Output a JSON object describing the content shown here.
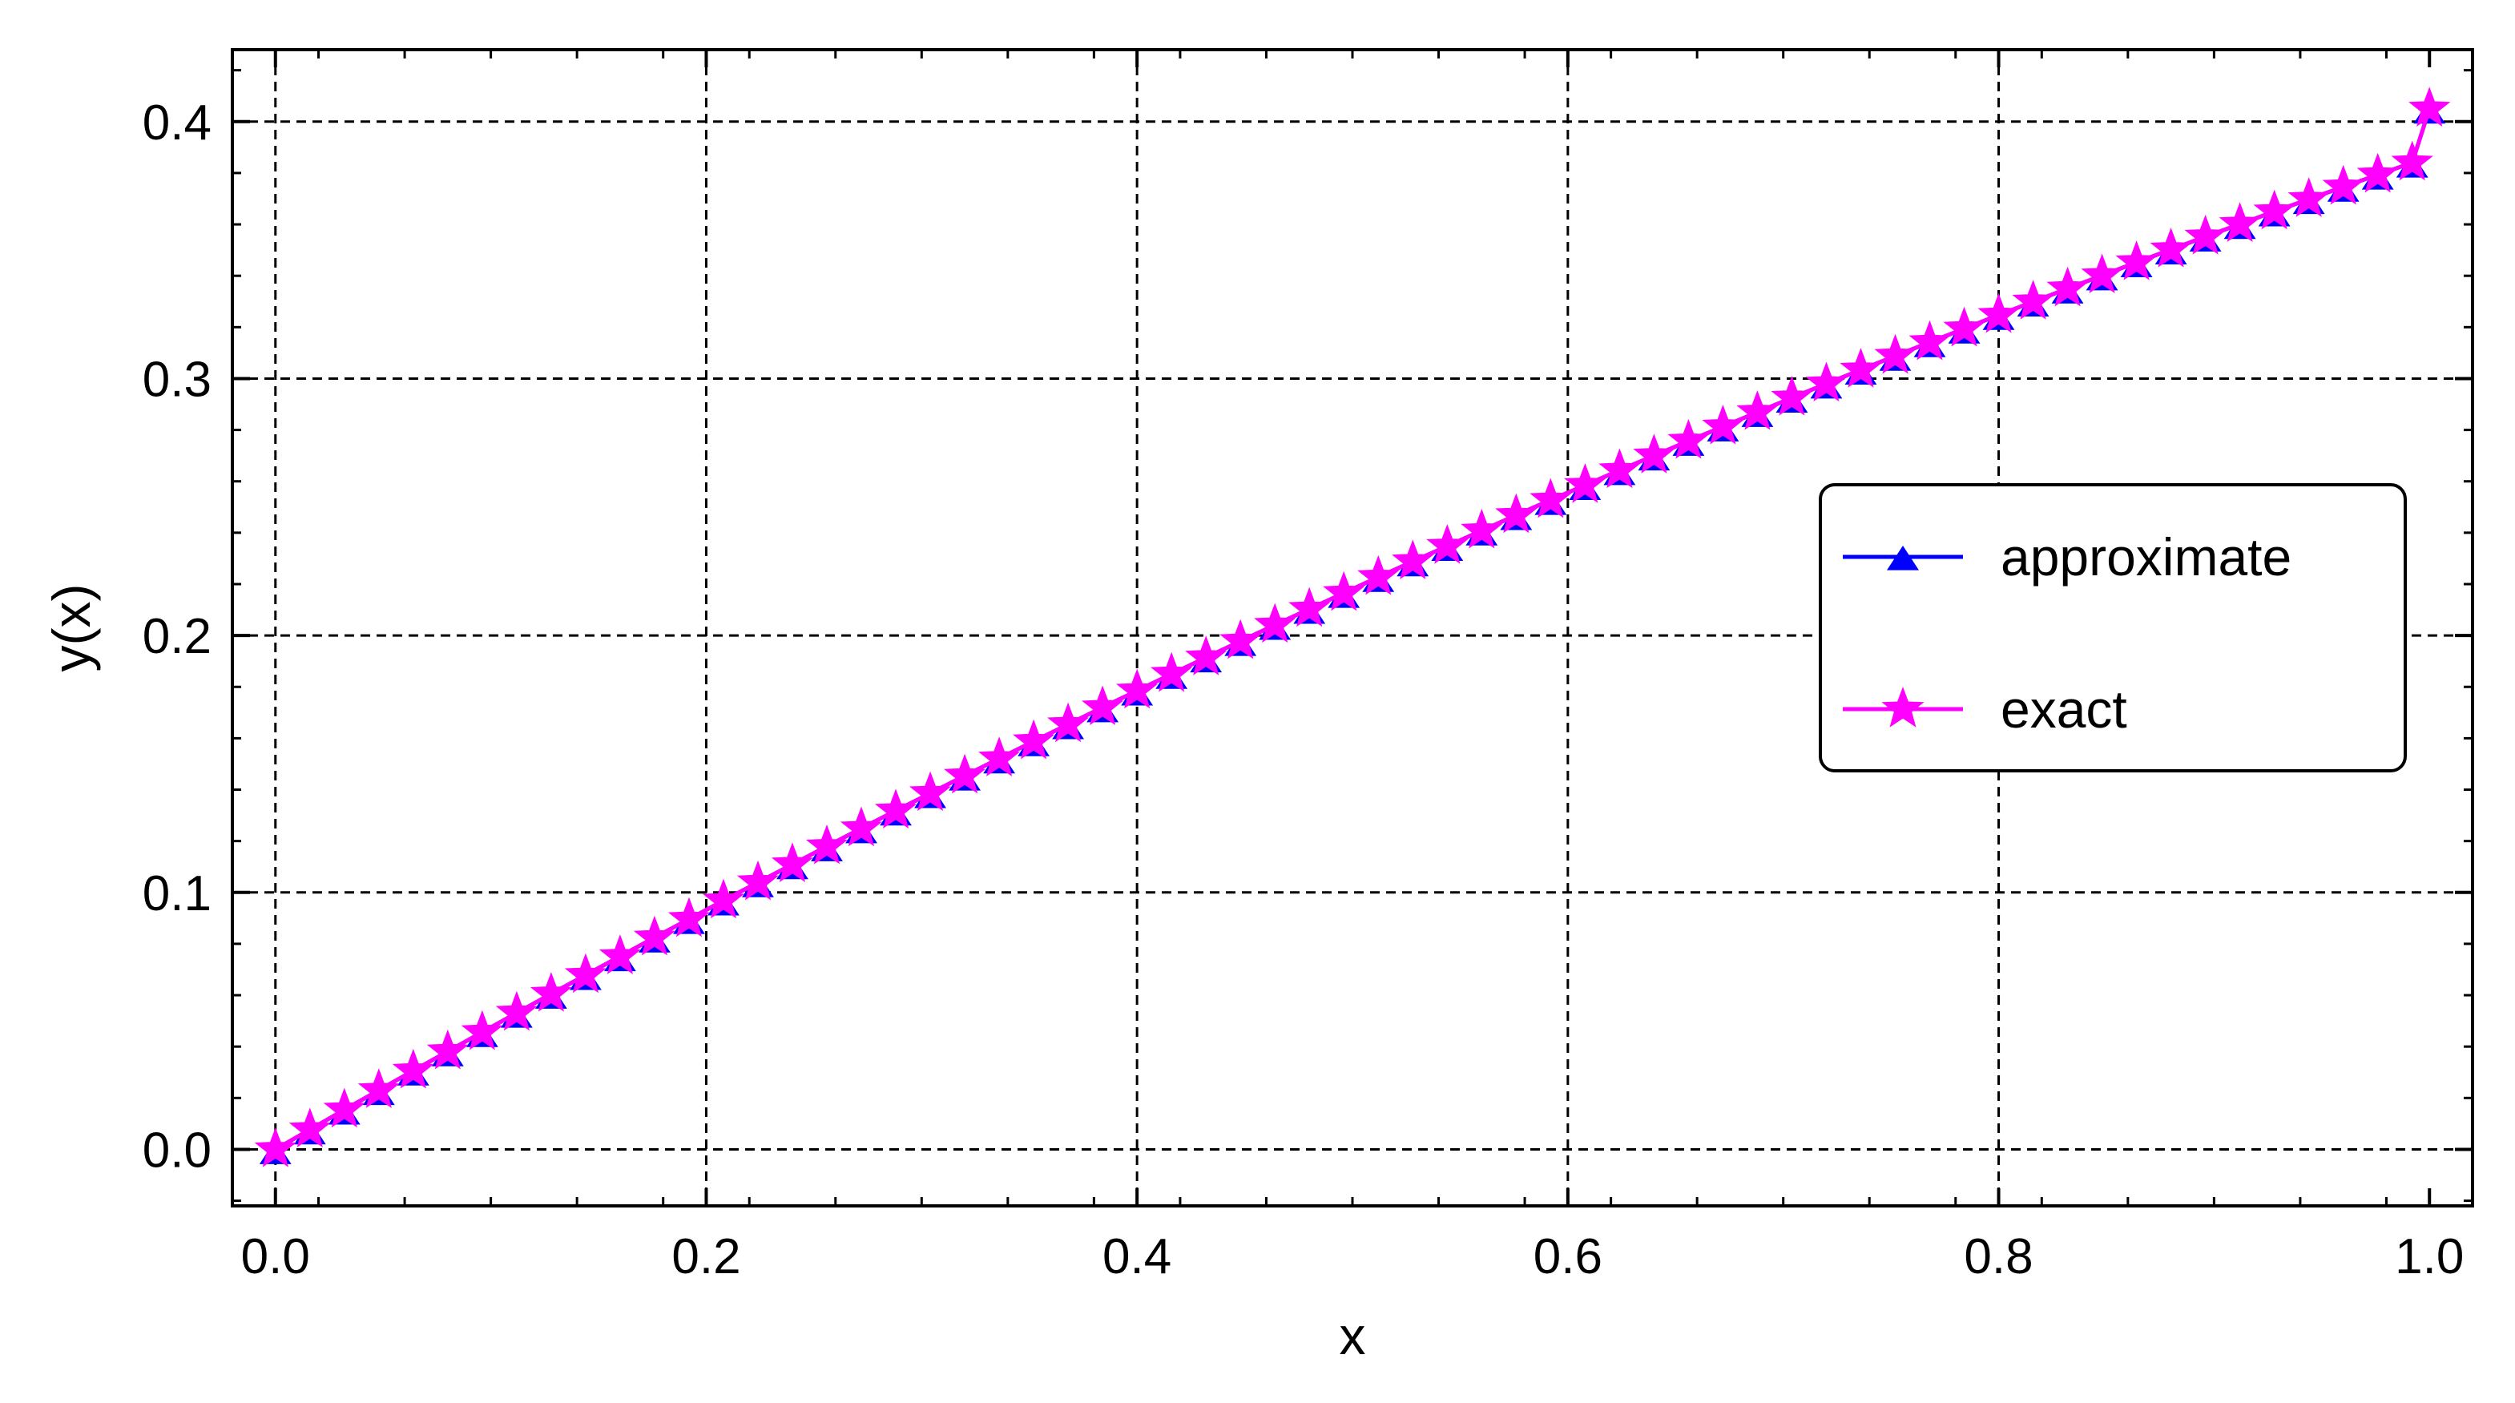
{
  "chart_data": {
    "type": "line",
    "title": "",
    "xlabel": "x",
    "ylabel": "y(x)",
    "xlim": [
      -0.02,
      1.02
    ],
    "ylim": [
      -0.022,
      0.428
    ],
    "xticks": [
      0.0,
      0.2,
      0.4,
      0.6,
      0.8,
      1.0
    ],
    "xtick_labels": [
      "0.0",
      "0.2",
      "0.4",
      "0.6",
      "0.8",
      "1.0"
    ],
    "yticks": [
      0.0,
      0.1,
      0.2,
      0.3,
      0.4
    ],
    "ytick_labels": [
      "0.0",
      "0.1",
      "0.2",
      "0.3",
      "0.4"
    ],
    "grid": true,
    "grid_style": "dashed",
    "legend_position": "right",
    "x": [
      0.0,
      0.016,
      0.032,
      0.048,
      0.064,
      0.08,
      0.096,
      0.112,
      0.128,
      0.144,
      0.16,
      0.176,
      0.192,
      0.208,
      0.224,
      0.24,
      0.256,
      0.272,
      0.288,
      0.304,
      0.32,
      0.336,
      0.352,
      0.368,
      0.384,
      0.4,
      0.416,
      0.432,
      0.448,
      0.464,
      0.48,
      0.496,
      0.512,
      0.528,
      0.544,
      0.56,
      0.576,
      0.592,
      0.608,
      0.624,
      0.64,
      0.656,
      0.672,
      0.688,
      0.704,
      0.72,
      0.736,
      0.752,
      0.768,
      0.784,
      0.8,
      0.816,
      0.832,
      0.848,
      0.864,
      0.88,
      0.896,
      0.912,
      0.928,
      0.944,
      0.96,
      0.976,
      0.992,
      1.0
    ],
    "series": [
      {
        "name": "approximate",
        "color": "#0000ff",
        "marker": "triangle",
        "values": [
          0.0,
          0.0077,
          0.0154,
          0.023,
          0.0306,
          0.0381,
          0.0456,
          0.0531,
          0.0605,
          0.0678,
          0.0751,
          0.0824,
          0.0896,
          0.0968,
          0.1039,
          0.1109,
          0.1179,
          0.1249,
          0.1318,
          0.1386,
          0.1454,
          0.1521,
          0.1588,
          0.1654,
          0.172,
          0.1785,
          0.185,
          0.1914,
          0.1978,
          0.2041,
          0.2103,
          0.2165,
          0.2227,
          0.2288,
          0.2348,
          0.2408,
          0.2468,
          0.2527,
          0.2585,
          0.2643,
          0.27,
          0.2757,
          0.2813,
          0.2869,
          0.2925,
          0.298,
          0.3034,
          0.3088,
          0.3141,
          0.3194,
          0.3247,
          0.3299,
          0.335,
          0.3401,
          0.3452,
          0.3502,
          0.3552,
          0.3601,
          0.365,
          0.3698,
          0.3746,
          0.3793,
          0.384,
          0.405
        ]
      },
      {
        "name": "exact",
        "color": "#ff00ff",
        "marker": "star",
        "values": [
          0.0,
          0.0077,
          0.0154,
          0.023,
          0.0306,
          0.0381,
          0.0456,
          0.0531,
          0.0605,
          0.0678,
          0.0751,
          0.0824,
          0.0896,
          0.0968,
          0.1039,
          0.1109,
          0.1179,
          0.1249,
          0.1318,
          0.1386,
          0.1454,
          0.1521,
          0.1588,
          0.1654,
          0.172,
          0.1785,
          0.185,
          0.1914,
          0.1978,
          0.2041,
          0.2103,
          0.2165,
          0.2227,
          0.2288,
          0.2348,
          0.2408,
          0.2468,
          0.2527,
          0.2585,
          0.2643,
          0.27,
          0.2757,
          0.2813,
          0.2869,
          0.2925,
          0.298,
          0.3034,
          0.3088,
          0.3141,
          0.3194,
          0.3247,
          0.3299,
          0.335,
          0.3401,
          0.3452,
          0.3502,
          0.3552,
          0.3601,
          0.365,
          0.3698,
          0.3746,
          0.3793,
          0.384,
          0.405
        ]
      }
    ]
  }
}
